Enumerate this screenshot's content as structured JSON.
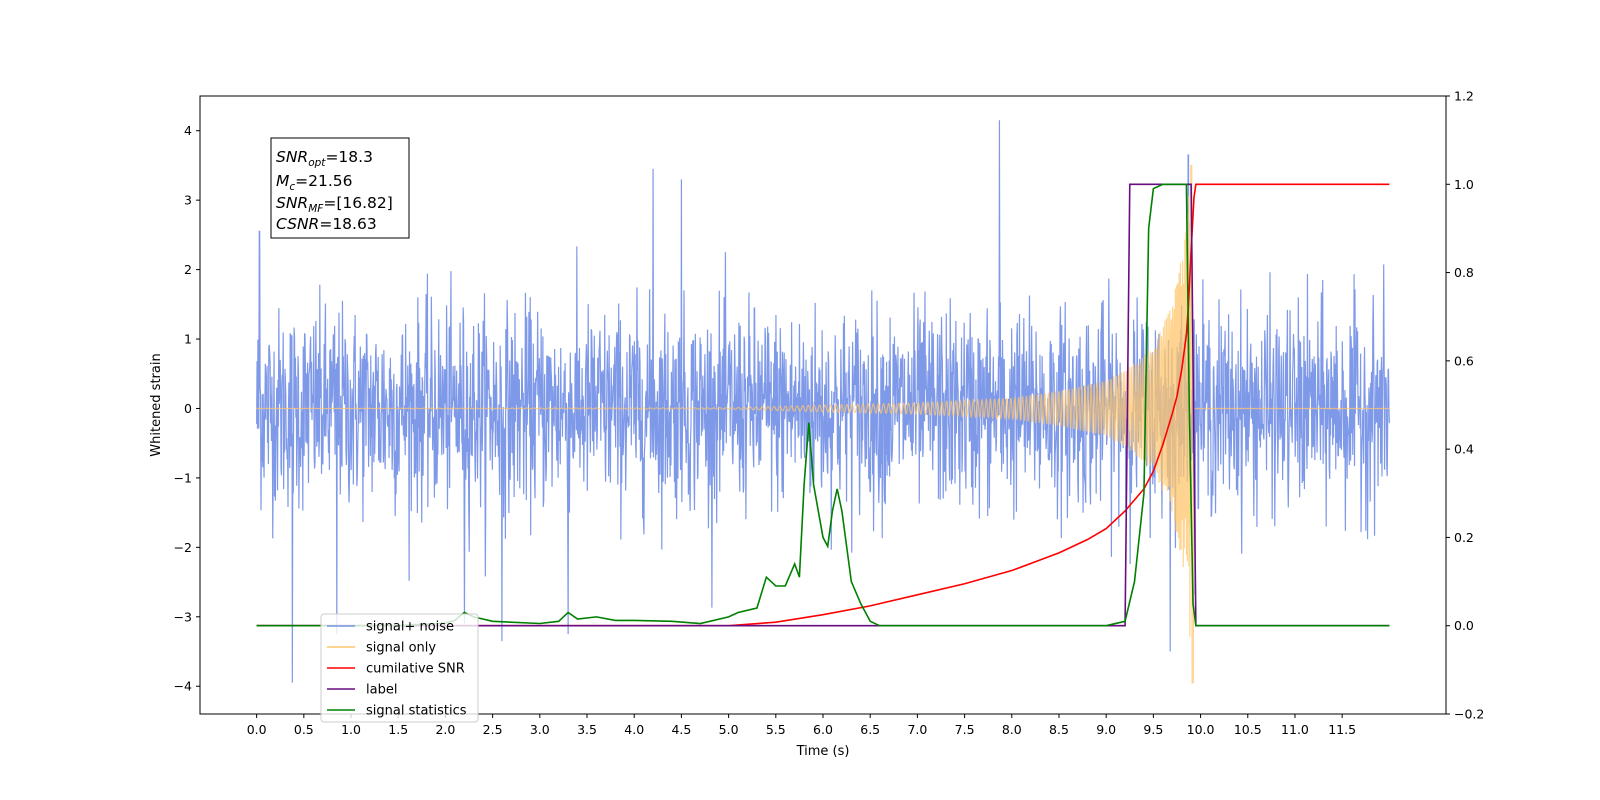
{
  "chart_data": {
    "type": "line",
    "xlabel": "Time (s)",
    "ylabel": "Whitened strain",
    "xlim": [
      -0.6,
      12.6
    ],
    "ylim": [
      -4.4,
      4.5
    ],
    "y2lim": [
      -0.2,
      1.2
    ],
    "grid": false,
    "legend_position": "lower-left",
    "x_ticks": [
      "0.0",
      "0.5",
      "1.0",
      "1.5",
      "2.0",
      "2.5",
      "3.0",
      "3.5",
      "4.0",
      "4.5",
      "5.0",
      "5.5",
      "6.0",
      "6.5",
      "7.0",
      "7.5",
      "8.0",
      "8.5",
      "9.0",
      "9.5",
      "10.0",
      "10.5",
      "11.0",
      "11.5"
    ],
    "y_ticks": [
      "4",
      "3",
      "2",
      "1",
      "0",
      "−1",
      "−2",
      "−3",
      "−4"
    ],
    "y2_ticks": [
      "1.2",
      "1.0",
      "0.8",
      "0.6",
      "0.4",
      "0.2",
      "0.0",
      "−0.2"
    ],
    "annotation": {
      "snr_opt": {
        "base": "SNR",
        "sub": "opt",
        "value": "=18.3"
      },
      "mc": {
        "base": "M",
        "sub": "c",
        "value": "=21.56"
      },
      "snr_mf": {
        "base": "SNR",
        "sub": "MF",
        "value": "=[16.82]"
      },
      "csnr": {
        "base": "CSNR",
        "sub": "",
        "value": "=18.63"
      }
    },
    "legend": [
      {
        "label": "signal+ noise",
        "color": "#7893e8"
      },
      {
        "label": "signal only",
        "color": "#ffc56b"
      },
      {
        "label": "cumilative SNR",
        "color": "#ff0000"
      },
      {
        "label": "label",
        "color": "#6a0d83"
      },
      {
        "label": "signal statistics",
        "color": "#008000"
      }
    ],
    "series": [
      {
        "name": "signal+ noise",
        "axis": "left",
        "color": "#7893e8",
        "x_range": [
          0.0,
          12.0
        ],
        "noise_sigma": 1.15,
        "extreme_values": [
          [
            0.03,
            2.55
          ],
          [
            0.38,
            -3.95
          ],
          [
            0.85,
            -3.25
          ],
          [
            2.2,
            -3.1
          ],
          [
            2.6,
            -3.35
          ],
          [
            3.3,
            -3.25
          ],
          [
            4.2,
            3.45
          ],
          [
            4.5,
            3.3
          ],
          [
            7.87,
            4.15
          ],
          [
            9.68,
            -3.5
          ],
          [
            9.87,
            3.65
          ]
        ]
      },
      {
        "name": "signal only",
        "axis": "left",
        "color": "#ffc56b",
        "description_points": [
          [
            0.0,
            0.0
          ],
          [
            5.0,
            0.01
          ],
          [
            6.0,
            0.05
          ],
          [
            7.0,
            0.08
          ],
          [
            8.0,
            0.15
          ],
          [
            8.5,
            0.25
          ],
          [
            9.0,
            0.4
          ],
          [
            9.3,
            0.65
          ],
          [
            9.5,
            0.9
          ],
          [
            9.7,
            1.5
          ],
          [
            9.83,
            2.4
          ],
          [
            9.9,
            3.5
          ],
          [
            9.92,
            -3.95
          ],
          [
            9.95,
            0.0
          ],
          [
            12.0,
            0.0
          ]
        ]
      },
      {
        "name": "cumilative SNR",
        "axis": "right",
        "color": "#ff0000",
        "x": [
          0.0,
          5.0,
          5.5,
          6.0,
          6.5,
          7.0,
          7.5,
          8.0,
          8.5,
          8.8,
          9.0,
          9.2,
          9.4,
          9.5,
          9.6,
          9.7,
          9.75,
          9.8,
          9.85,
          9.87,
          9.9,
          9.93,
          9.95,
          12.0
        ],
        "y": [
          0.0,
          0.0,
          0.008,
          0.025,
          0.045,
          0.07,
          0.095,
          0.125,
          0.165,
          0.195,
          0.22,
          0.26,
          0.31,
          0.35,
          0.41,
          0.48,
          0.52,
          0.58,
          0.66,
          0.72,
          0.85,
          0.97,
          1.0,
          1.0
        ]
      },
      {
        "name": "label",
        "axis": "right",
        "color": "#6a0d83",
        "x": [
          0.0,
          9.2,
          9.25,
          9.9,
          9.95,
          12.0
        ],
        "y": [
          0.0,
          0.0,
          1.0,
          1.0,
          0.0,
          0.0
        ]
      },
      {
        "name": "signal statistics",
        "axis": "right",
        "color": "#008000",
        "x": [
          0.0,
          1.5,
          2.0,
          2.1,
          2.2,
          2.3,
          2.5,
          3.0,
          3.2,
          3.3,
          3.4,
          3.6,
          3.8,
          4.0,
          4.4,
          4.7,
          5.0,
          5.1,
          5.3,
          5.4,
          5.5,
          5.6,
          5.7,
          5.75,
          5.8,
          5.85,
          5.9,
          6.0,
          6.05,
          6.1,
          6.15,
          6.2,
          6.3,
          6.4,
          6.5,
          6.6,
          7.0,
          9.0,
          9.2,
          9.3,
          9.4,
          9.45,
          9.5,
          9.6,
          9.85,
          9.88,
          9.92,
          9.95,
          12.0
        ],
        "y": [
          0.0,
          0.0,
          0.006,
          0.012,
          0.03,
          0.02,
          0.01,
          0.005,
          0.01,
          0.03,
          0.015,
          0.02,
          0.012,
          0.012,
          0.01,
          0.005,
          0.02,
          0.03,
          0.04,
          0.11,
          0.09,
          0.09,
          0.14,
          0.11,
          0.32,
          0.46,
          0.32,
          0.2,
          0.18,
          0.26,
          0.31,
          0.26,
          0.1,
          0.05,
          0.01,
          0.0,
          0.0,
          0.0,
          0.01,
          0.1,
          0.3,
          0.9,
          0.99,
          1.0,
          1.0,
          0.5,
          0.05,
          0.0,
          0.0
        ]
      }
    ]
  }
}
